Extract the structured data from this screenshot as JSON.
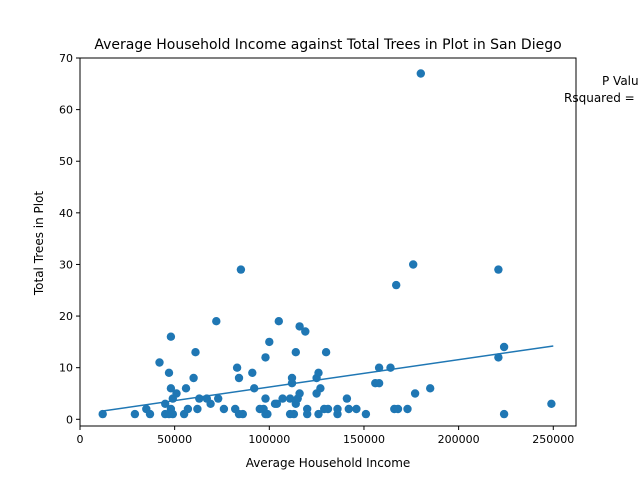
{
  "chart_data": {
    "type": "scatter",
    "title": "Average Household Income against Total Trees in Plot in San Diego",
    "xlabel": "Average Household Income",
    "ylabel": "Total Trees in Plot",
    "xlim": [
      0,
      262000
    ],
    "ylim": [
      -1.3,
      70
    ],
    "xticks": [
      0,
      50000,
      100000,
      150000,
      200000,
      250000
    ],
    "yticks": [
      0,
      10,
      20,
      30,
      40,
      50,
      60,
      70
    ],
    "grid": false,
    "annotations": {
      "p_value": "P Valu",
      "rsquared": "Rsquared ="
    },
    "colors": {
      "points": "#1f77b4",
      "trend": "#1f77b4"
    },
    "trendline": {
      "x": [
        12000,
        250000
      ],
      "y": [
        1.6,
        14.2
      ]
    },
    "points": [
      [
        12000,
        1
      ],
      [
        29000,
        1
      ],
      [
        35000,
        2
      ],
      [
        37000,
        1
      ],
      [
        42000,
        11
      ],
      [
        45000,
        1
      ],
      [
        45000,
        3
      ],
      [
        47000,
        1
      ],
      [
        47000,
        9
      ],
      [
        48000,
        16
      ],
      [
        48000,
        2
      ],
      [
        48000,
        6
      ],
      [
        49000,
        4
      ],
      [
        49000,
        1
      ],
      [
        51000,
        5
      ],
      [
        55000,
        1
      ],
      [
        56000,
        6
      ],
      [
        57000,
        2
      ],
      [
        60000,
        8
      ],
      [
        61000,
        13
      ],
      [
        62000,
        2
      ],
      [
        63000,
        4
      ],
      [
        67000,
        4
      ],
      [
        69000,
        3
      ],
      [
        72000,
        19
      ],
      [
        73000,
        4
      ],
      [
        76000,
        2
      ],
      [
        82000,
        2
      ],
      [
        83000,
        10
      ],
      [
        84000,
        8
      ],
      [
        84000,
        1
      ],
      [
        85000,
        29
      ],
      [
        86000,
        1
      ],
      [
        91000,
        9
      ],
      [
        92000,
        6
      ],
      [
        95000,
        2
      ],
      [
        97000,
        2
      ],
      [
        98000,
        4
      ],
      [
        98000,
        1
      ],
      [
        98000,
        12
      ],
      [
        99000,
        1
      ],
      [
        100000,
        15
      ],
      [
        103000,
        3
      ],
      [
        104000,
        3
      ],
      [
        105000,
        19
      ],
      [
        107000,
        4
      ],
      [
        111000,
        4
      ],
      [
        111000,
        1
      ],
      [
        112000,
        8
      ],
      [
        112000,
        7
      ],
      [
        113000,
        1
      ],
      [
        114000,
        13
      ],
      [
        114000,
        3
      ],
      [
        115000,
        4
      ],
      [
        116000,
        5
      ],
      [
        116000,
        18
      ],
      [
        119000,
        17
      ],
      [
        120000,
        2
      ],
      [
        120000,
        1
      ],
      [
        125000,
        8
      ],
      [
        125000,
        5
      ],
      [
        126000,
        9
      ],
      [
        126000,
        1
      ],
      [
        127000,
        6
      ],
      [
        129000,
        2
      ],
      [
        130000,
        13
      ],
      [
        131000,
        2
      ],
      [
        136000,
        1
      ],
      [
        136000,
        2
      ],
      [
        141000,
        4
      ],
      [
        142000,
        2
      ],
      [
        146000,
        2
      ],
      [
        151000,
        1
      ],
      [
        156000,
        7
      ],
      [
        158000,
        10
      ],
      [
        158000,
        7
      ],
      [
        164000,
        10
      ],
      [
        166000,
        2
      ],
      [
        167000,
        26
      ],
      [
        168000,
        2
      ],
      [
        173000,
        2
      ],
      [
        176000,
        30
      ],
      [
        177000,
        5
      ],
      [
        180000,
        67
      ],
      [
        185000,
        6
      ],
      [
        221000,
        29
      ],
      [
        221000,
        12
      ],
      [
        224000,
        14
      ],
      [
        224000,
        1
      ],
      [
        249000,
        3
      ]
    ]
  }
}
